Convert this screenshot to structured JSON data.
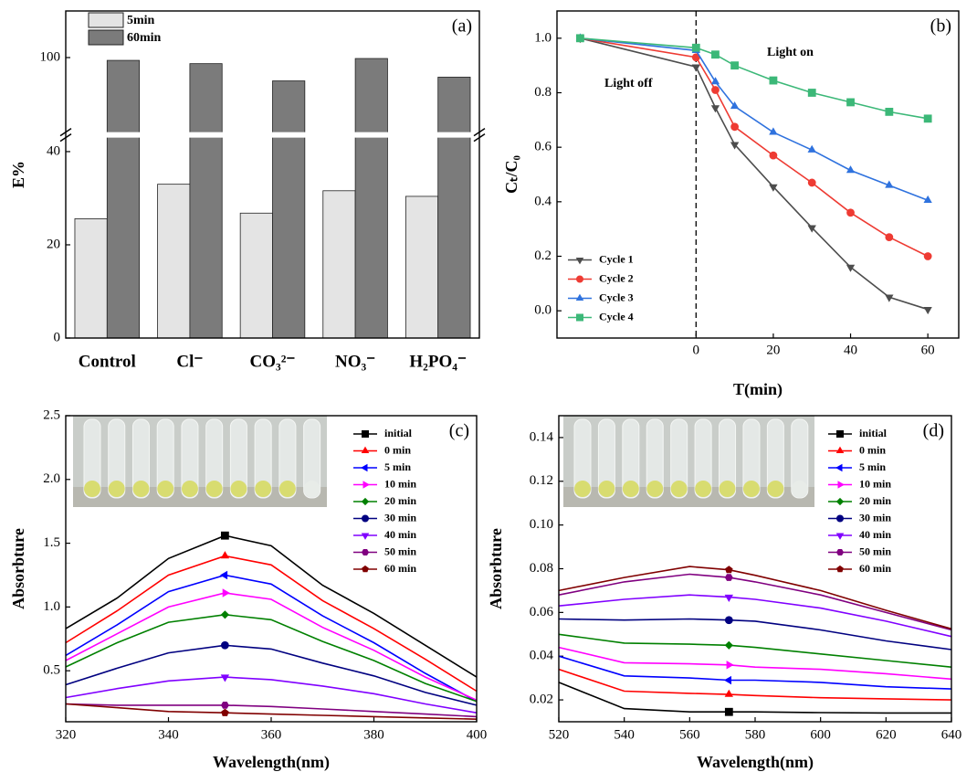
{
  "chart_data": [
    {
      "type": "bar",
      "panel_label": "(a)",
      "y_label": "E%",
      "categories": [
        "Control",
        "Cl⁻",
        "CO₃²⁻",
        "NO₃⁻",
        "H₂PO₄⁻"
      ],
      "series": [
        {
          "name": "5min",
          "color": "#e4e4e4",
          "values": [
            25.6,
            33,
            26.8,
            31.6,
            30.4
          ]
        },
        {
          "name": "60min",
          "color": "#7b7b7b",
          "values": [
            99.4,
            98.7,
            95,
            99.8,
            95.8
          ]
        }
      ],
      "ylim": [
        0,
        110
      ],
      "ybreak": [
        43,
        84
      ],
      "yticks": [
        0,
        20,
        40,
        100
      ],
      "legend": "upper left"
    },
    {
      "type": "line",
      "panel_label": "(b)",
      "y_label": "Cₜ/C₀",
      "x_label": "T(min)",
      "annotations": [
        "Light off",
        "Light on"
      ],
      "reference_line_x": 0,
      "x": [
        -30,
        0,
        5,
        10,
        20,
        30,
        40,
        50,
        60
      ],
      "series": [
        {
          "name": "Cycle 1",
          "color": "#4d4d4d",
          "marker": "tri-down",
          "values": [
            1.0,
            0.895,
            0.745,
            0.61,
            0.455,
            0.305,
            0.16,
            0.05,
            0.005
          ]
        },
        {
          "name": "Cycle 2",
          "color": "#ee3b33",
          "marker": "circle",
          "values": [
            1.0,
            0.93,
            0.81,
            0.675,
            0.57,
            0.47,
            0.36,
            0.27,
            0.2
          ]
        },
        {
          "name": "Cycle 3",
          "color": "#2f72de",
          "marker": "tri-up",
          "values": [
            1.0,
            0.955,
            0.84,
            0.75,
            0.655,
            0.59,
            0.515,
            0.46,
            0.405
          ]
        },
        {
          "name": "Cycle 4",
          "color": "#3cb878",
          "marker": "square",
          "values": [
            1.0,
            0.965,
            0.94,
            0.9,
            0.845,
            0.8,
            0.765,
            0.73,
            0.705
          ]
        }
      ],
      "xlim": [
        -36,
        68
      ],
      "xticks": [
        0,
        20,
        40,
        60
      ],
      "ylim": [
        -0.1,
        1.1
      ],
      "yticks": [
        {
          "value": 0,
          "label": "0.0"
        },
        0.2,
        0.4,
        0.6,
        0.8,
        {
          "value": 1,
          "label": "1.0"
        }
      ],
      "legend": "lower left"
    },
    {
      "type": "line",
      "panel_label": "(c)",
      "y_label": "Absorbture",
      "x_label": "Wavelength(nm)",
      "marker_x": 351,
      "x": [
        320,
        330,
        340,
        351,
        360,
        370,
        380,
        390,
        400
      ],
      "series": [
        {
          "name": "initial",
          "color": "#000000",
          "marker": "square",
          "values": [
            0.83,
            1.07,
            1.38,
            1.56,
            1.48,
            1.17,
            0.95,
            0.7,
            0.45
          ]
        },
        {
          "name": "0 min",
          "color": "#ff0000",
          "marker": "tri-up",
          "values": [
            0.72,
            0.97,
            1.25,
            1.4,
            1.33,
            1.05,
            0.83,
            0.59,
            0.34
          ]
        },
        {
          "name": "5 min",
          "color": "#0000ff",
          "marker": "tri-left",
          "values": [
            0.62,
            0.86,
            1.12,
            1.25,
            1.18,
            0.93,
            0.72,
            0.48,
            0.26
          ]
        },
        {
          "name": "10 min",
          "color": "#ff00ff",
          "marker": "tri-right",
          "values": [
            0.58,
            0.79,
            1.0,
            1.11,
            1.06,
            0.84,
            0.66,
            0.45,
            0.27
          ]
        },
        {
          "name": "20 min",
          "color": "#008000",
          "marker": "diamond",
          "values": [
            0.53,
            0.72,
            0.88,
            0.94,
            0.9,
            0.73,
            0.58,
            0.4,
            0.26
          ]
        },
        {
          "name": "30 min",
          "color": "#000080",
          "marker": "circle",
          "values": [
            0.39,
            0.52,
            0.64,
            0.7,
            0.67,
            0.56,
            0.46,
            0.33,
            0.23
          ]
        },
        {
          "name": "40 min",
          "color": "#8000ff",
          "marker": "tri-down",
          "values": [
            0.29,
            0.36,
            0.42,
            0.45,
            0.43,
            0.38,
            0.32,
            0.24,
            0.17
          ]
        },
        {
          "name": "50 min",
          "color": "#800080",
          "marker": "hexagon",
          "values": [
            0.24,
            0.23,
            0.23,
            0.23,
            0.22,
            0.2,
            0.18,
            0.16,
            0.14
          ]
        },
        {
          "name": "60 min",
          "color": "#800000",
          "marker": "pentagon",
          "values": [
            0.24,
            0.21,
            0.18,
            0.17,
            0.16,
            0.15,
            0.14,
            0.13,
            0.12
          ]
        }
      ],
      "xlim": [
        320,
        400
      ],
      "xticks": [
        320,
        340,
        360,
        380,
        400
      ],
      "ylim": [
        0.1,
        2.5
      ],
      "yticks": [
        0.5,
        {
          "value": 1,
          "label": "1.0"
        },
        1.5,
        {
          "value": 2,
          "label": "2.0"
        },
        2.5
      ],
      "legend": "upper right"
    },
    {
      "type": "line",
      "panel_label": "(d)",
      "y_label": "Absorbture",
      "x_label": "Wavelength(nm)",
      "marker_x": 572,
      "x": [
        520,
        540,
        560,
        572,
        580,
        600,
        620,
        640
      ],
      "series": [
        {
          "name": "initial",
          "color": "#000000",
          "marker": "square",
          "values": [
            0.028,
            0.016,
            0.0145,
            0.0145,
            0.0145,
            0.0142,
            0.014,
            0.014
          ]
        },
        {
          "name": "0 min",
          "color": "#ff0000",
          "marker": "tri-up",
          "values": [
            0.034,
            0.024,
            0.023,
            0.0225,
            0.022,
            0.021,
            0.0205,
            0.02
          ]
        },
        {
          "name": "5 min",
          "color": "#0000ff",
          "marker": "tri-left",
          "values": [
            0.04,
            0.031,
            0.03,
            0.029,
            0.029,
            0.028,
            0.026,
            0.025
          ]
        },
        {
          "name": "10 min",
          "color": "#ff00ff",
          "marker": "tri-right",
          "values": [
            0.044,
            0.037,
            0.0365,
            0.036,
            0.035,
            0.034,
            0.032,
            0.0295
          ]
        },
        {
          "name": "20 min",
          "color": "#008000",
          "marker": "diamond",
          "values": [
            0.05,
            0.046,
            0.0455,
            0.045,
            0.044,
            0.041,
            0.038,
            0.035
          ]
        },
        {
          "name": "30 min",
          "color": "#000080",
          "marker": "circle",
          "values": [
            0.057,
            0.0565,
            0.057,
            0.0565,
            0.056,
            0.052,
            0.047,
            0.043
          ]
        },
        {
          "name": "40 min",
          "color": "#8000ff",
          "marker": "tri-down",
          "values": [
            0.063,
            0.066,
            0.068,
            0.067,
            0.066,
            0.062,
            0.056,
            0.049
          ]
        },
        {
          "name": "50 min",
          "color": "#800080",
          "marker": "hexagon",
          "values": [
            0.068,
            0.074,
            0.0775,
            0.076,
            0.074,
            0.068,
            0.06,
            0.052
          ]
        },
        {
          "name": "60 min",
          "color": "#800000",
          "marker": "pentagon",
          "values": [
            0.07,
            0.076,
            0.081,
            0.0795,
            0.077,
            0.07,
            0.061,
            0.0525
          ]
        }
      ],
      "xlim": [
        520,
        640
      ],
      "xticks": [
        520,
        540,
        560,
        580,
        600,
        620,
        640
      ],
      "ylim": [
        0.01,
        0.15
      ],
      "yticks": [
        0.02,
        0.04,
        0.06,
        0.08,
        {
          "value": 0.1,
          "label": "0.10"
        },
        0.12,
        0.14
      ],
      "legend": "upper right"
    }
  ]
}
